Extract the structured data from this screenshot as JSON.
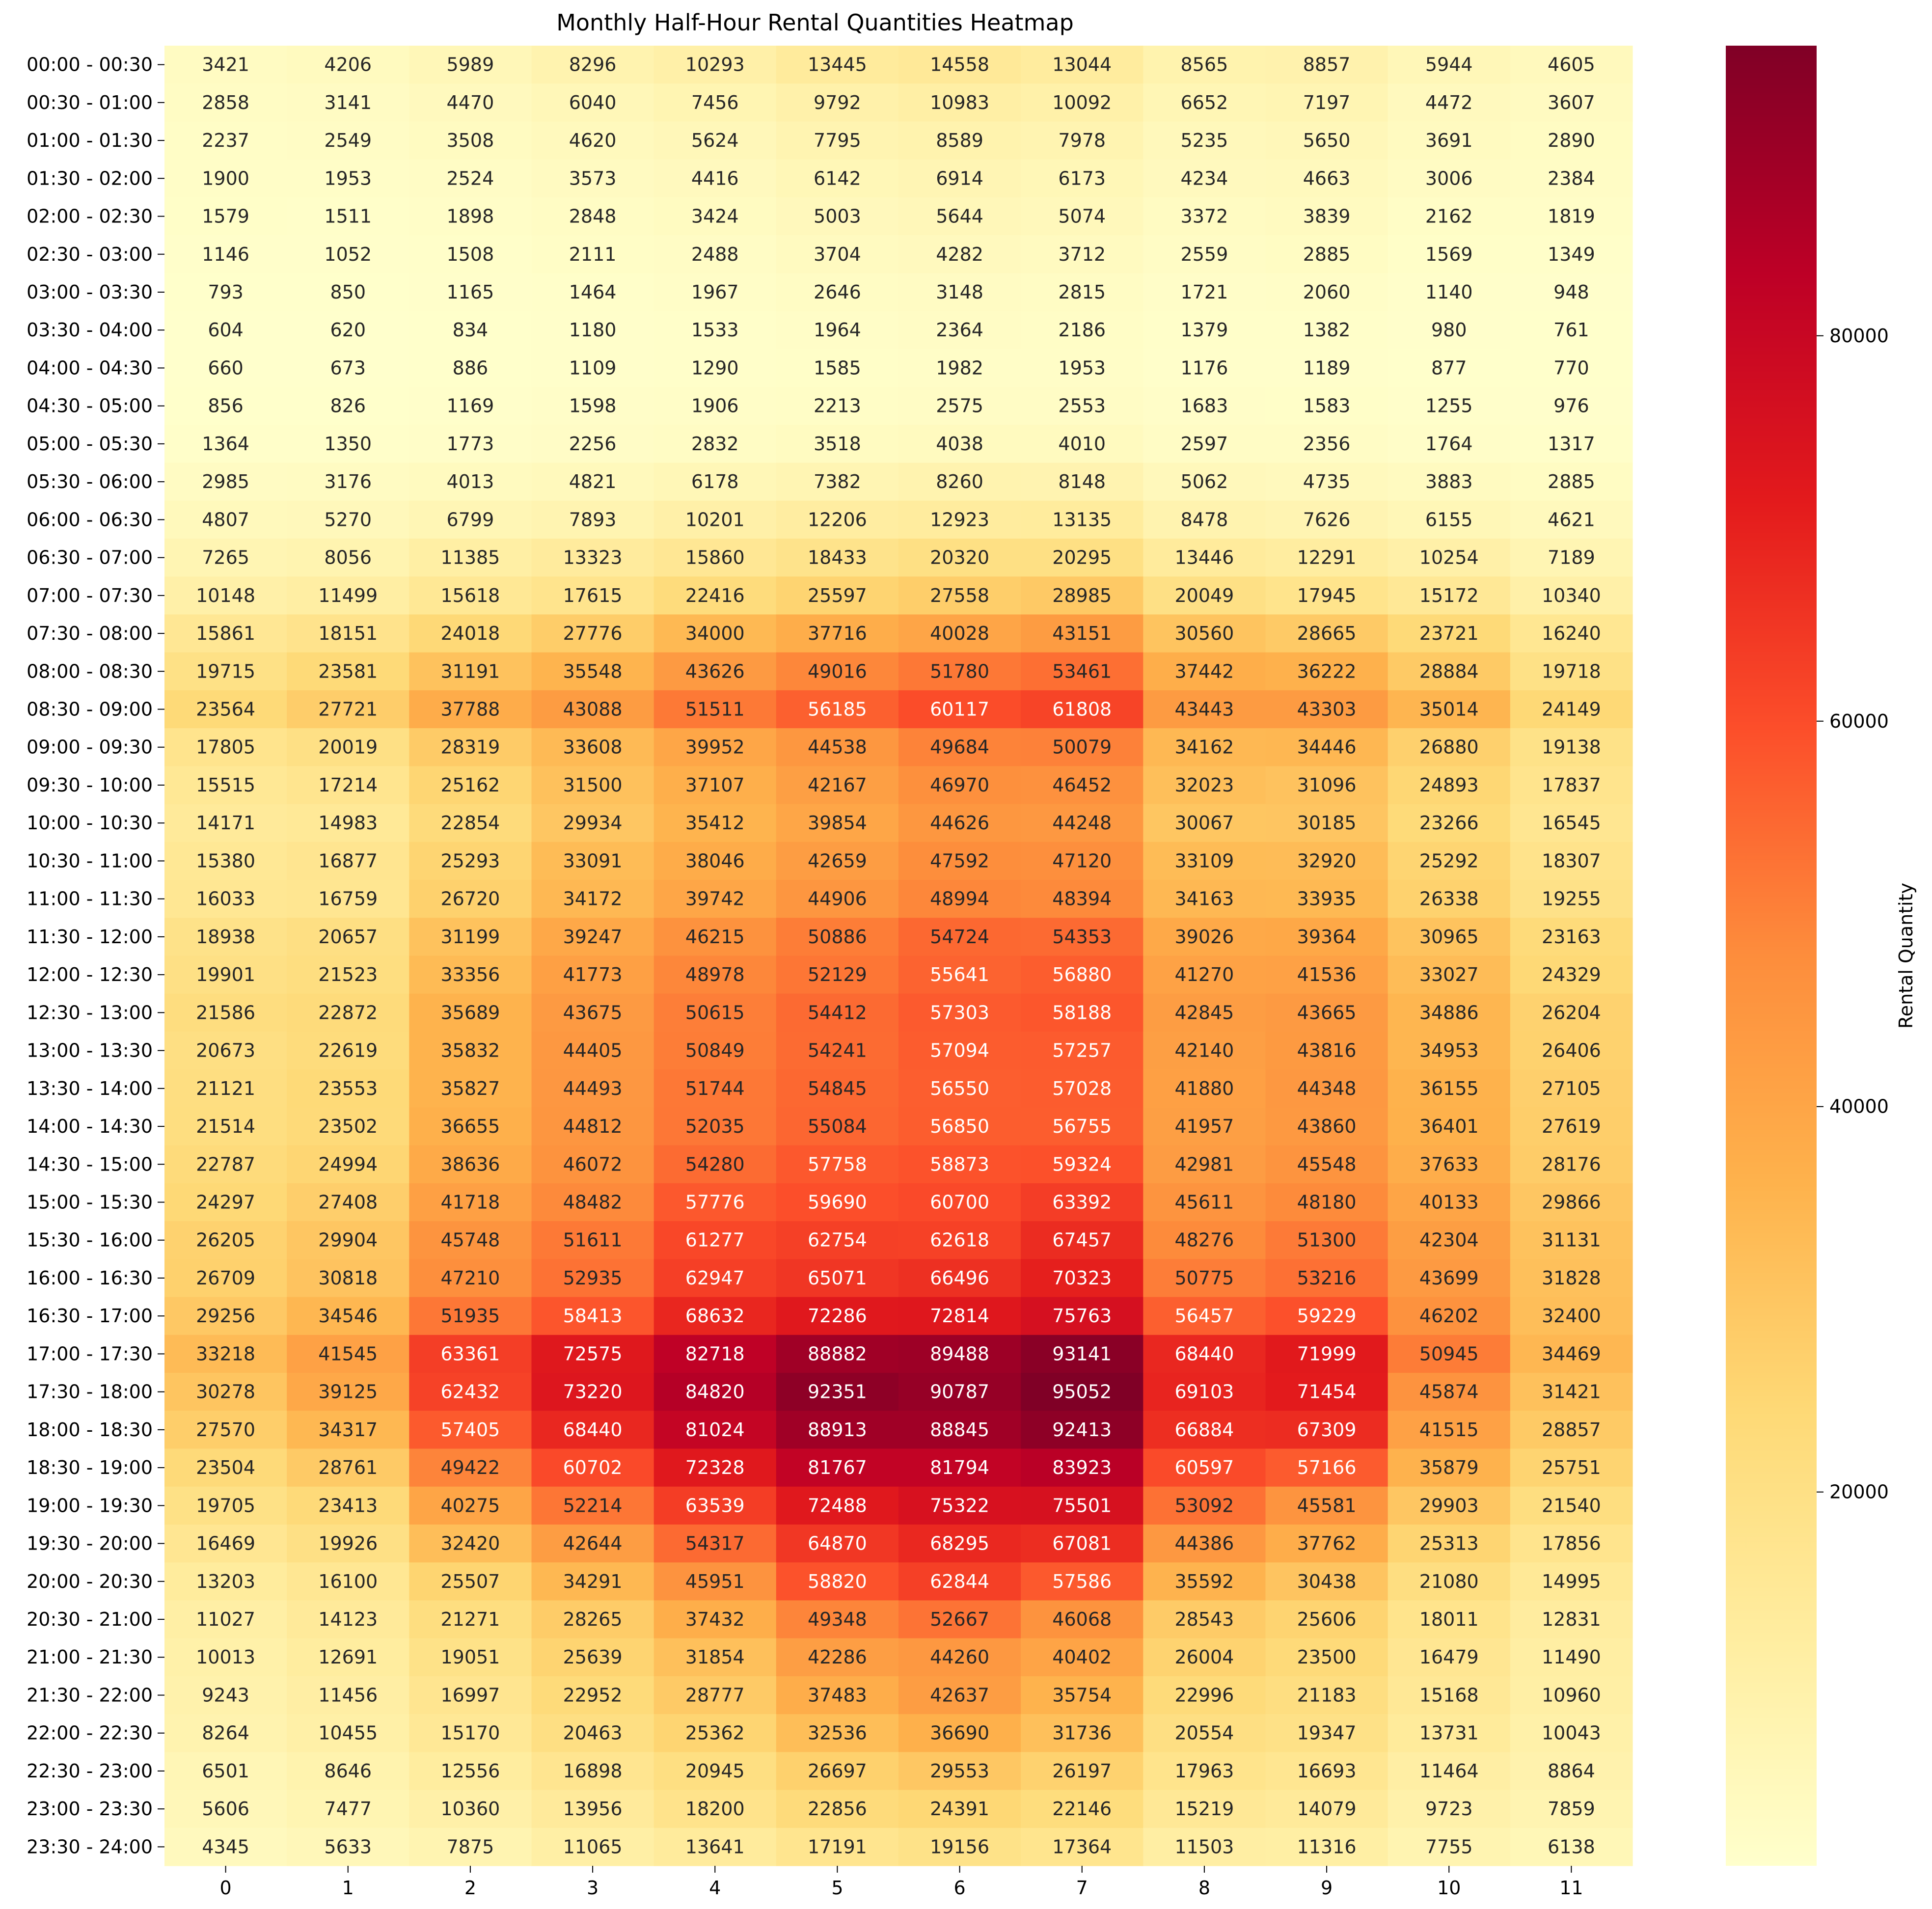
{
  "chart_data": {
    "type": "heatmap",
    "title": "Monthly Half-Hour Rental Quantities Heatmap",
    "xlabel": "",
    "ylabel": "",
    "x_labels": [
      "0",
      "1",
      "2",
      "3",
      "4",
      "5",
      "6",
      "7",
      "8",
      "9",
      "10",
      "11"
    ],
    "y_labels": [
      "00:00 - 00:30",
      "00:30 - 01:00",
      "01:00 - 01:30",
      "01:30 - 02:00",
      "02:00 - 02:30",
      "02:30 - 03:00",
      "03:00 - 03:30",
      "03:30 - 04:00",
      "04:00 - 04:30",
      "04:30 - 05:00",
      "05:00 - 05:30",
      "05:30 - 06:00",
      "06:00 - 06:30",
      "06:30 - 07:00",
      "07:00 - 07:30",
      "07:30 - 08:00",
      "08:00 - 08:30",
      "08:30 - 09:00",
      "09:00 - 09:30",
      "09:30 - 10:00",
      "10:00 - 10:30",
      "10:30 - 11:00",
      "11:00 - 11:30",
      "11:30 - 12:00",
      "12:00 - 12:30",
      "12:30 - 13:00",
      "13:00 - 13:30",
      "13:30 - 14:00",
      "14:00 - 14:30",
      "14:30 - 15:00",
      "15:00 - 15:30",
      "15:30 - 16:00",
      "16:00 - 16:30",
      "16:30 - 17:00",
      "17:00 - 17:30",
      "17:30 - 18:00",
      "18:00 - 18:30",
      "18:30 - 19:00",
      "19:00 - 19:30",
      "19:30 - 20:00",
      "20:00 - 20:30",
      "20:30 - 21:00",
      "21:00 - 21:30",
      "21:30 - 22:00",
      "22:00 - 22:30",
      "22:30 - 23:00",
      "23:00 - 23:30",
      "23:30 - 24:00"
    ],
    "values": [
      [
        3421,
        4206,
        5989,
        8296,
        10293,
        13445,
        14558,
        13044,
        8565,
        8857,
        5944,
        4605
      ],
      [
        2858,
        3141,
        4470,
        6040,
        7456,
        9792,
        10983,
        10092,
        6652,
        7197,
        4472,
        3607
      ],
      [
        2237,
        2549,
        3508,
        4620,
        5624,
        7795,
        8589,
        7978,
        5235,
        5650,
        3691,
        2890
      ],
      [
        1900,
        1953,
        2524,
        3573,
        4416,
        6142,
        6914,
        6173,
        4234,
        4663,
        3006,
        2384
      ],
      [
        1579,
        1511,
        1898,
        2848,
        3424,
        5003,
        5644,
        5074,
        3372,
        3839,
        2162,
        1819
      ],
      [
        1146,
        1052,
        1508,
        2111,
        2488,
        3704,
        4282,
        3712,
        2559,
        2885,
        1569,
        1349
      ],
      [
        793,
        850,
        1165,
        1464,
        1967,
        2646,
        3148,
        2815,
        1721,
        2060,
        1140,
        948
      ],
      [
        604,
        620,
        834,
        1180,
        1533,
        1964,
        2364,
        2186,
        1379,
        1382,
        980,
        761
      ],
      [
        660,
        673,
        886,
        1109,
        1290,
        1585,
        1982,
        1953,
        1176,
        1189,
        877,
        770
      ],
      [
        856,
        826,
        1169,
        1598,
        1906,
        2213,
        2575,
        2553,
        1683,
        1583,
        1255,
        976
      ],
      [
        1364,
        1350,
        1773,
        2256,
        2832,
        3518,
        4038,
        4010,
        2597,
        2356,
        1764,
        1317
      ],
      [
        2985,
        3176,
        4013,
        4821,
        6178,
        7382,
        8260,
        8148,
        5062,
        4735,
        3883,
        2885
      ],
      [
        4807,
        5270,
        6799,
        7893,
        10201,
        12206,
        12923,
        13135,
        8478,
        7626,
        6155,
        4621
      ],
      [
        7265,
        8056,
        11385,
        13323,
        15860,
        18433,
        20320,
        20295,
        13446,
        12291,
        10254,
        7189
      ],
      [
        10148,
        11499,
        15618,
        17615,
        22416,
        25597,
        27558,
        28985,
        20049,
        17945,
        15172,
        10340
      ],
      [
        15861,
        18151,
        24018,
        27776,
        34000,
        37716,
        40028,
        43151,
        30560,
        28665,
        23721,
        16240
      ],
      [
        19715,
        23581,
        31191,
        35548,
        43626,
        49016,
        51780,
        53461,
        37442,
        36222,
        28884,
        19718
      ],
      [
        23564,
        27721,
        37788,
        43088,
        51511,
        56185,
        60117,
        61808,
        43443,
        43303,
        35014,
        24149
      ],
      [
        17805,
        20019,
        28319,
        33608,
        39952,
        44538,
        49684,
        50079,
        34162,
        34446,
        26880,
        19138
      ],
      [
        15515,
        17214,
        25162,
        31500,
        37107,
        42167,
        46970,
        46452,
        32023,
        31096,
        24893,
        17837
      ],
      [
        14171,
        14983,
        22854,
        29934,
        35412,
        39854,
        44626,
        44248,
        30067,
        30185,
        23266,
        16545
      ],
      [
        15380,
        16877,
        25293,
        33091,
        38046,
        42659,
        47592,
        47120,
        33109,
        32920,
        25292,
        18307
      ],
      [
        16033,
        16759,
        26720,
        34172,
        39742,
        44906,
        48994,
        48394,
        34163,
        33935,
        26338,
        19255
      ],
      [
        18938,
        20657,
        31199,
        39247,
        46215,
        50886,
        54724,
        54353,
        39026,
        39364,
        30965,
        23163
      ],
      [
        19901,
        21523,
        33356,
        41773,
        48978,
        52129,
        55641,
        56880,
        41270,
        41536,
        33027,
        24329
      ],
      [
        21586,
        22872,
        35689,
        43675,
        50615,
        54412,
        57303,
        58188,
        42845,
        43665,
        34886,
        26204
      ],
      [
        20673,
        22619,
        35832,
        44405,
        50849,
        54241,
        57094,
        57257,
        42140,
        43816,
        34953,
        26406
      ],
      [
        21121,
        23553,
        35827,
        44493,
        51744,
        54845,
        56550,
        57028,
        41880,
        44348,
        36155,
        27105
      ],
      [
        21514,
        23502,
        36655,
        44812,
        52035,
        55084,
        56850,
        56755,
        41957,
        43860,
        36401,
        27619
      ],
      [
        22787,
        24994,
        38636,
        46072,
        54280,
        57758,
        58873,
        59324,
        42981,
        45548,
        37633,
        28176
      ],
      [
        24297,
        27408,
        41718,
        48482,
        57776,
        59690,
        60700,
        63392,
        45611,
        48180,
        40133,
        29866
      ],
      [
        26205,
        29904,
        45748,
        51611,
        61277,
        62754,
        62618,
        67457,
        48276,
        51300,
        42304,
        31131
      ],
      [
        26709,
        30818,
        47210,
        52935,
        62947,
        65071,
        66496,
        70323,
        50775,
        53216,
        43699,
        31828
      ],
      [
        29256,
        34546,
        51935,
        58413,
        68632,
        72286,
        72814,
        75763,
        56457,
        59229,
        46202,
        32400
      ],
      [
        33218,
        41545,
        63361,
        72575,
        82718,
        88882,
        89488,
        93141,
        68440,
        71999,
        50945,
        34469
      ],
      [
        30278,
        39125,
        62432,
        73220,
        84820,
        92351,
        90787,
        95052,
        69103,
        71454,
        45874,
        31421
      ],
      [
        27570,
        34317,
        57405,
        68440,
        81024,
        88913,
        88845,
        92413,
        66884,
        67309,
        41515,
        28857
      ],
      [
        23504,
        28761,
        49422,
        60702,
        72328,
        81767,
        81794,
        83923,
        60597,
        57166,
        35879,
        25751
      ],
      [
        19705,
        23413,
        40275,
        52214,
        63539,
        72488,
        75322,
        75501,
        53092,
        45581,
        29903,
        21540
      ],
      [
        16469,
        19926,
        32420,
        42644,
        54317,
        64870,
        68295,
        67081,
        44386,
        37762,
        25313,
        17856
      ],
      [
        13203,
        16100,
        25507,
        34291,
        45951,
        58820,
        62844,
        57586,
        35592,
        30438,
        21080,
        14995
      ],
      [
        11027,
        14123,
        21271,
        28265,
        37432,
        49348,
        52667,
        46068,
        28543,
        25606,
        18011,
        12831
      ],
      [
        10013,
        12691,
        19051,
        25639,
        31854,
        42286,
        44260,
        40402,
        26004,
        23500,
        16479,
        11490
      ],
      [
        9243,
        11456,
        16997,
        22952,
        28777,
        37483,
        42637,
        35754,
        22996,
        21183,
        15168,
        10960
      ],
      [
        8264,
        10455,
        15170,
        20463,
        25362,
        32536,
        36690,
        31736,
        20554,
        19347,
        13731,
        10043
      ],
      [
        6501,
        8646,
        12556,
        16898,
        20945,
        26697,
        29553,
        26197,
        17963,
        16693,
        11464,
        8864
      ],
      [
        5606,
        7477,
        10360,
        13956,
        18200,
        22856,
        24391,
        22146,
        15219,
        14079,
        9723,
        7859
      ],
      [
        4345,
        5633,
        7875,
        11065,
        13641,
        17191,
        19156,
        17364,
        11503,
        11316,
        7755,
        6138
      ]
    ],
    "colorbar": {
      "label": "Rental Quantity",
      "ticks": [
        20000,
        40000,
        60000,
        80000
      ],
      "tick_labels": [
        "20000",
        "40000",
        "60000",
        "80000"
      ],
      "colormap": "YlOrRd",
      "range": [
        604,
        95052
      ],
      "stops": [
        "#ffffcc",
        "#ffeda0",
        "#fed976",
        "#feb24c",
        "#fd8d3c",
        "#fc4e2a",
        "#e31a1c",
        "#bd0026",
        "#800026"
      ]
    },
    "annotation_text_dark": "#262626",
    "annotation_text_light": "#ffffff"
  }
}
